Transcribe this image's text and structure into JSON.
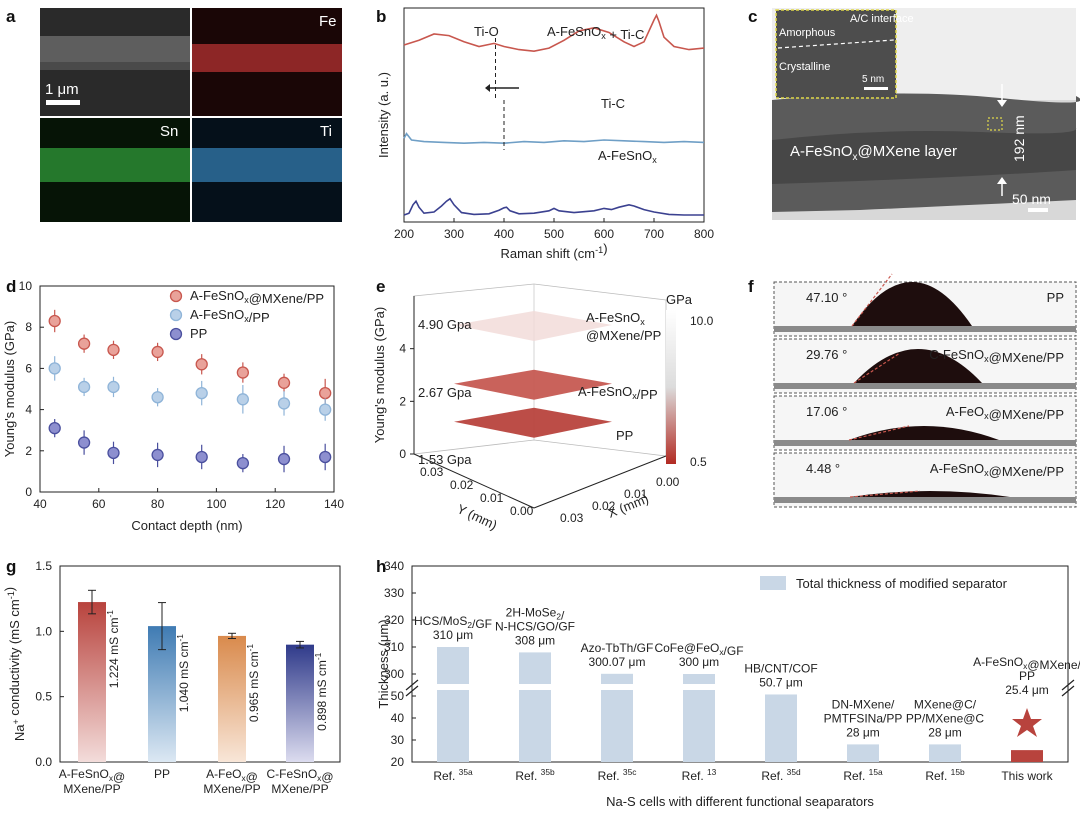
{
  "panel_letters": [
    "a",
    "b",
    "c",
    "d",
    "e",
    "f",
    "g",
    "h"
  ],
  "colors": {
    "red": "#c8574e",
    "blue_light": "#8fb4d8",
    "navy": "#4a4f9e",
    "red_fill": "#e9a29a",
    "blue_fill": "#b9d0e8",
    "navy_fill": "#8d8fcf",
    "bar_light": "#c9d7e6",
    "bar_red": "#b8433d",
    "orange": "#d98a4c"
  },
  "panel_a": {
    "tiles": [
      "",
      "Fe",
      "Sn",
      "Ti"
    ],
    "scale_bar": "1 μm"
  },
  "panel_c": {
    "inset_labels": [
      "A/C interface",
      "Amorphous",
      "Crystalline"
    ],
    "inset_scale": "5 nm",
    "layer_label": "A-FeSnO",
    "layer_sub": "x",
    "layer_suffix": "@MXene layer",
    "thickness": "192 nm",
    "scale_bar": "50 nm"
  },
  "panel_f": {
    "images": [
      {
        "angle": "47.10 °",
        "name": "PP"
      },
      {
        "angle": "29.76 °",
        "name": "C-FeSnOx@MXene/PP"
      },
      {
        "angle": "17.06 °",
        "name": "A-FeOx@MXene/PP"
      },
      {
        "angle": "4.48 °",
        "name": "A-FeSnOx@MXene/PP"
      }
    ]
  },
  "chart_data": [
    {
      "id": "b",
      "type": "line",
      "title": "",
      "xlabel": "Raman shift (cm-1)",
      "ylabel": "Intensity (a. u.)",
      "xlim": [
        200,
        800
      ],
      "xticks": [
        200,
        300,
        400,
        500,
        600,
        700,
        800
      ],
      "series": [
        {
          "name": "A-FeSnOx + Ti-C",
          "color": "#c8574e",
          "x": [
            200,
            230,
            260,
            290,
            320,
            350,
            380,
            400,
            430,
            460,
            490,
            520,
            550,
            580,
            610,
            640,
            660,
            680,
            690,
            700,
            705,
            710,
            720,
            740,
            770,
            800
          ],
          "y": [
            0.68,
            0.74,
            0.82,
            0.8,
            0.72,
            0.66,
            0.7,
            0.66,
            0.62,
            0.6,
            0.64,
            0.74,
            0.86,
            0.9,
            0.84,
            0.72,
            0.66,
            0.72,
            0.86,
            1.0,
            1.06,
            0.98,
            0.78,
            0.66,
            0.62,
            0.64
          ]
        },
        {
          "name": "Ti-C",
          "color": "#6f9fc6",
          "x": [
            200,
            205,
            215,
            240,
            280,
            320,
            360,
            400,
            440,
            480,
            520,
            560,
            600,
            640,
            680,
            720,
            760,
            800
          ],
          "y": [
            0.42,
            0.48,
            0.4,
            0.38,
            0.37,
            0.36,
            0.37,
            0.36,
            0.38,
            0.37,
            0.39,
            0.38,
            0.4,
            0.39,
            0.38,
            0.37,
            0.38,
            0.37
          ]
        },
        {
          "name": "A-FeSnOx",
          "color": "#3b4190",
          "x": [
            200,
            210,
            218,
            224,
            230,
            240,
            260,
            275,
            285,
            292,
            300,
            315,
            340,
            370,
            390,
            400,
            405,
            412,
            430,
            460,
            490,
            500,
            510,
            540,
            580,
            600,
            615,
            630,
            650,
            660,
            680,
            700,
            730,
            760,
            800
          ],
          "y": [
            0.05,
            0.08,
            0.22,
            0.28,
            0.18,
            0.08,
            0.1,
            0.2,
            0.28,
            0.32,
            0.22,
            0.09,
            0.06,
            0.07,
            0.13,
            0.17,
            0.18,
            0.12,
            0.07,
            0.08,
            0.12,
            0.16,
            0.12,
            0.09,
            0.12,
            0.16,
            0.14,
            0.18,
            0.22,
            0.2,
            0.14,
            0.1,
            0.06,
            0.05,
            0.05
          ]
        }
      ],
      "annotations": [
        "Ti-O",
        "A-FeSnOx + Ti-C",
        "Ti-C",
        "A-FeSnOx"
      ]
    },
    {
      "id": "d",
      "type": "scatter",
      "xlabel": "Contact depth (nm)",
      "ylabel": "Young's modulus (GPa)",
      "xlim": [
        40,
        140
      ],
      "ylim": [
        0,
        10
      ],
      "xticks": [
        40,
        60,
        80,
        100,
        120,
        140
      ],
      "yticks": [
        0,
        2,
        4,
        6,
        8,
        10
      ],
      "x": [
        45,
        55,
        65,
        80,
        95,
        109,
        123,
        137
      ],
      "series": [
        {
          "name": "A-FeSnOx@MXene/PP",
          "values": [
            8.3,
            7.2,
            6.9,
            6.8,
            6.2,
            5.8,
            5.3,
            4.8
          ],
          "err": [
            0.3,
            0.2,
            0.2,
            0.2,
            0.25,
            0.25,
            0.2,
            0.45
          ]
        },
        {
          "name": "A-FeSnOx/PP",
          "values": [
            6.0,
            5.1,
            5.1,
            4.6,
            4.8,
            4.5,
            4.3,
            4.0
          ],
          "err": [
            0.35,
            0.2,
            0.25,
            0.2,
            0.35,
            0.45,
            0.35,
            0.3
          ]
        },
        {
          "name": "PP",
          "values": [
            3.1,
            2.4,
            1.9,
            1.8,
            1.7,
            1.4,
            1.6,
            1.7
          ],
          "err": [
            0.2,
            0.35,
            0.3,
            0.35,
            0.35,
            0.2,
            0.4,
            0.4
          ]
        }
      ]
    },
    {
      "id": "e",
      "type": "3d-surface",
      "zlabel": "Young's modulus (GPa)",
      "xlabel": "X (mm)",
      "ylabel": "Y (mm)",
      "zticks": [
        0,
        2,
        4
      ],
      "xyticks": [
        "0.03",
        "0.02",
        "0.01",
        "0.00"
      ],
      "colorbar": {
        "title": "GPa",
        "max": "10.0",
        "min": "0.5"
      },
      "layers": [
        {
          "name": "A-FeSnOx@MXene/PP",
          "value": 4.9,
          "label": "4.90 Gpa"
        },
        {
          "name": "A-FeSnOx/PP",
          "value": 2.67,
          "label": "2.67 Gpa"
        },
        {
          "name": "PP",
          "value": 1.53,
          "label": "1.53 Gpa"
        }
      ]
    },
    {
      "id": "g",
      "type": "bar",
      "ylabel": "Na+ conductivity (mS cm-1)",
      "ylim": [
        0,
        1.5
      ],
      "yticks": [
        "0.0",
        "0.5",
        "1.0",
        "1.5"
      ],
      "categories": [
        "A-FeSnOx@MXene/PP",
        "PP",
        "A-FeOx@MXene/PP",
        "C-FeSnOx@MXene/PP"
      ],
      "values": [
        1.224,
        1.04,
        0.965,
        0.898
      ],
      "err": [
        0.09,
        0.18,
        0.02,
        0.025
      ],
      "labels": [
        "1.224 mS cm-1",
        "1.040 mS cm-1",
        "0.965 mS cm-1",
        "0.898 mS cm-1"
      ],
      "colors": [
        "#b8433d",
        "#3f7bb3",
        "#d98a4c",
        "#2f3a8a"
      ]
    },
    {
      "id": "h",
      "type": "bar",
      "xlabel": "Na-S cells with different functional seaparators",
      "ylabel": "Thickness (μm)",
      "legend": "Total thickness of modified separator",
      "yticks_upper": [
        300,
        310,
        320,
        330,
        340
      ],
      "yticks_lower": [
        20,
        30,
        40,
        50
      ],
      "categories": [
        "Ref. 35a",
        "Ref. 35b",
        "Ref. 35c",
        "Ref. 13",
        "Ref. 35d",
        "Ref. 15a",
        "Ref. 15b",
        "This work"
      ],
      "values": [
        310,
        308,
        300.07,
        300,
        50.7,
        28,
        28,
        25.4
      ],
      "names": [
        "HCS/MoS2/GF",
        "2H-MoSe2/N-HCS/GO/GF",
        "Azo-TbTh/GF",
        "CoFe@FeOx/GF",
        "HB/CNT/COF",
        "DN-MXene/PMTFSINa/PP",
        "MXene@C/PP/MXene@C",
        "A-FeSnOx@MXene/PP"
      ],
      "value_labels": [
        "310 μm",
        "308 μm",
        "300.07 μm",
        "300 μm",
        "50.7 μm",
        "28 μm",
        "28 μm",
        "25.4 μm"
      ]
    }
  ]
}
